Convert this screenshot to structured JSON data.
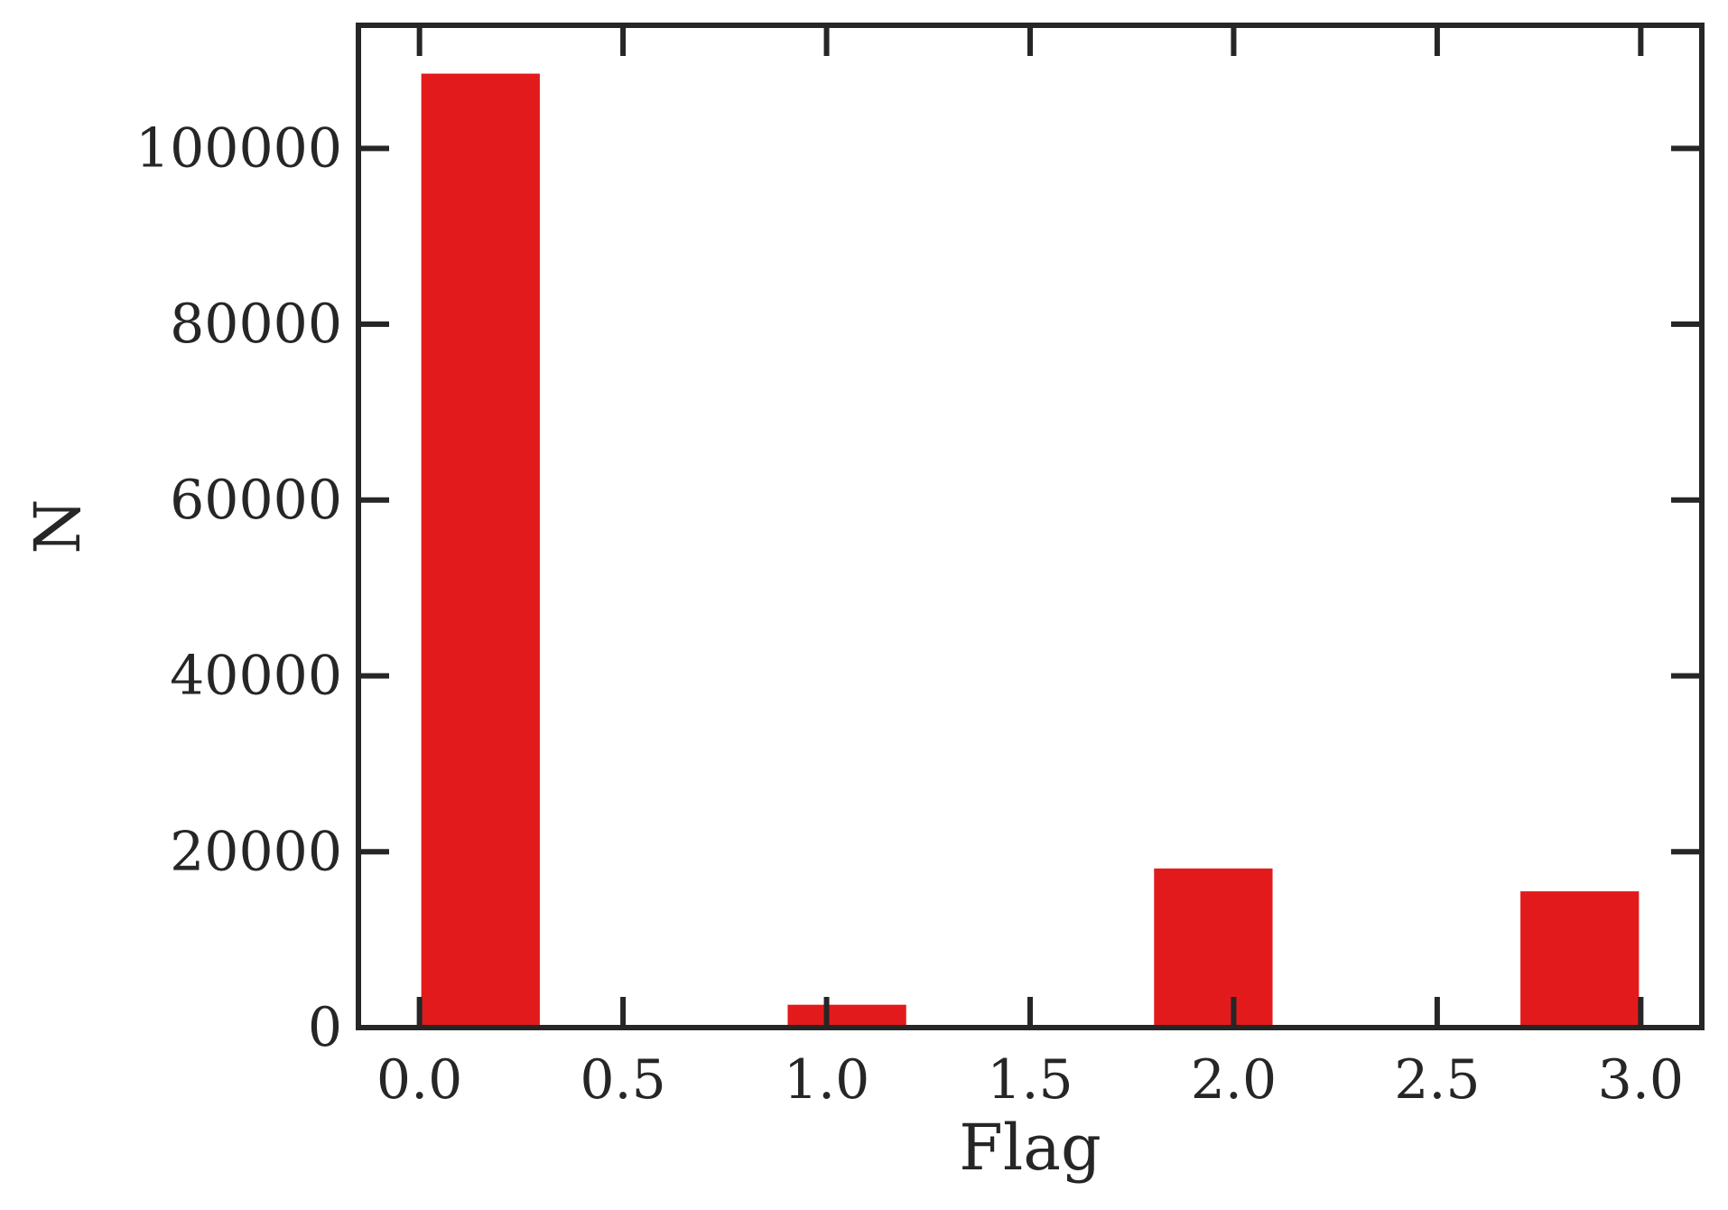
{
  "chart_data": {
    "type": "bar",
    "title": "",
    "xlabel": "Flag",
    "ylabel": "N",
    "x_ticks": [
      "0.0",
      "0.5",
      "1.0",
      "1.5",
      "2.0",
      "2.5",
      "3.0"
    ],
    "y_ticks": [
      "0",
      "20000",
      "40000",
      "60000",
      "80000",
      "100000"
    ],
    "xlim": [
      -0.15,
      3.15
    ],
    "ylim": [
      0,
      114000
    ],
    "bar_color": "#e31a1c",
    "axis_color": "#262626",
    "grid": false,
    "bins": [
      {
        "x_start": 0.0,
        "x_end": 0.3,
        "value": 108500
      },
      {
        "x_start": 0.3,
        "x_end": 0.6,
        "value": 0
      },
      {
        "x_start": 0.6,
        "x_end": 0.9,
        "value": 0
      },
      {
        "x_start": 0.9,
        "x_end": 1.2,
        "value": 2600
      },
      {
        "x_start": 1.2,
        "x_end": 1.5,
        "value": 0
      },
      {
        "x_start": 1.5,
        "x_end": 1.8,
        "value": 0
      },
      {
        "x_start": 1.8,
        "x_end": 2.1,
        "value": 18100
      },
      {
        "x_start": 2.1,
        "x_end": 2.4,
        "value": 0
      },
      {
        "x_start": 2.4,
        "x_end": 2.7,
        "value": 0
      },
      {
        "x_start": 2.7,
        "x_end": 3.0,
        "value": 15500
      }
    ]
  }
}
